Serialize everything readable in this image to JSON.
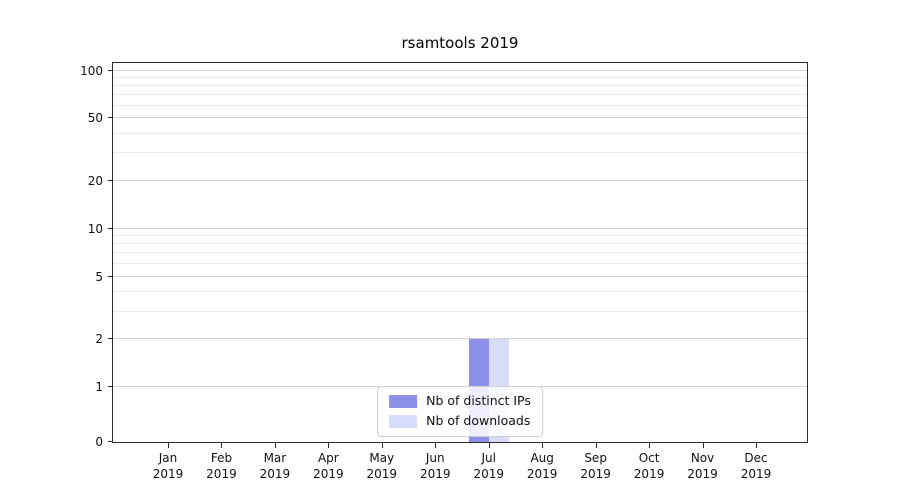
{
  "chart_data": {
    "type": "bar",
    "title": "rsamtools 2019",
    "categories": [
      "Jan 2019",
      "Feb 2019",
      "Mar 2019",
      "Apr 2019",
      "May 2019",
      "Jun 2019",
      "Jul 2019",
      "Aug 2019",
      "Sep 2019",
      "Oct 2019",
      "Nov 2019",
      "Dec 2019"
    ],
    "series": [
      {
        "name": "Nb of distinct IPs",
        "color": "#8b90e9",
        "values": [
          0,
          0,
          0,
          0,
          0,
          0,
          2,
          0,
          0,
          0,
          0,
          0
        ]
      },
      {
        "name": "Nb of downloads",
        "color": "#d8dcf8",
        "values": [
          0,
          0,
          0,
          0,
          0,
          0,
          2,
          0,
          0,
          0,
          0,
          0
        ]
      }
    ],
    "xlabel": "",
    "ylabel": "",
    "yscale": "symlog",
    "y_major_ticks": [
      0,
      1,
      2,
      5,
      10,
      20,
      50,
      100
    ],
    "y_minor_ticks": [
      3,
      4,
      6,
      7,
      8,
      9,
      30,
      40,
      60,
      70,
      80,
      90
    ],
    "ylim": [
      0,
      112
    ],
    "grid": "horizontal",
    "legend_position": "lower center",
    "background_color": "#ffffff"
  }
}
